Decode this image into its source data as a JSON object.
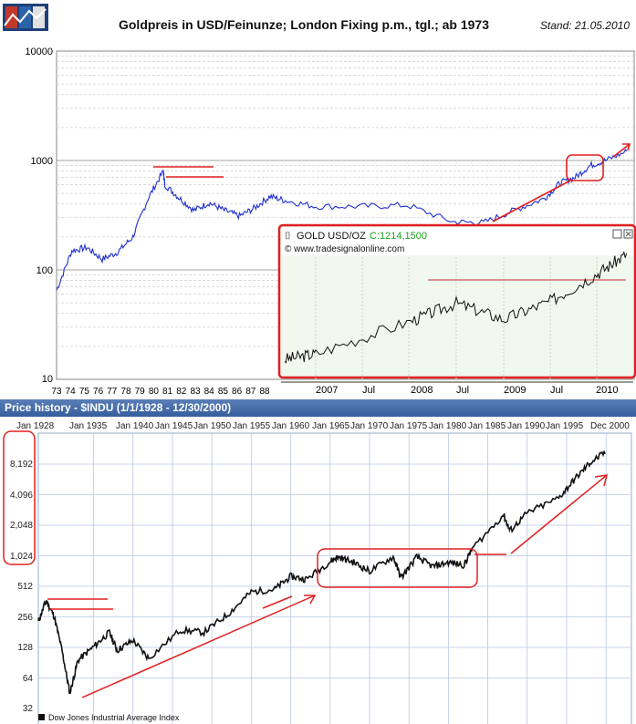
{
  "gold": {
    "title": "Goldpreis in USD/Feinunze; London Fixing p.m., tgl.; ab 1973",
    "date": "Stand: 21.05.2010",
    "y_ticks": [
      "10000",
      "1000",
      "100",
      "10"
    ],
    "x_ticks": [
      "73",
      "74",
      "75",
      "76",
      "77",
      "78",
      "79",
      "80",
      "81",
      "82",
      "83",
      "84",
      "85",
      "86",
      "87",
      "88"
    ]
  },
  "inset": {
    "title": "GOLD USD/OZ",
    "close": "C:1214,1500",
    "source": "© www.tradesignalonline.com",
    "x_ticks": [
      "2007",
      "Jul",
      "2008",
      "Jul",
      "2009",
      "Jul",
      "2010"
    ]
  },
  "indu": {
    "header": "Price history - $INDU (1/1/1928 - 12/30/2000)",
    "x_ticks": [
      "Jan 1928",
      "Jan 1935",
      "Jan 1940",
      "Jan 1945",
      "Jan 1950",
      "Jan 1955",
      "Jan 1960",
      "Jan 1965",
      "Jan 1970",
      "Jan 1975",
      "Jan 1980",
      "Jan 1985",
      "Jan 1990",
      "Jan 1995",
      "Dec 2000"
    ],
    "y_ticks": [
      "8,192",
      "4,096",
      "2,048",
      "1,024",
      "512",
      "256",
      "128",
      "64",
      "32"
    ],
    "legend": "Dow Jones Industrial Average Index"
  },
  "chart_data": [
    {
      "type": "line",
      "title": "Goldpreis in USD/Feinunze; London Fixing p.m., tgl.; ab 1973",
      "ylim": [
        10,
        10000
      ],
      "y_scale": "log",
      "x": [
        1973,
        1974,
        1975,
        1976,
        1977,
        1978,
        1979,
        1980,
        1980.1,
        1981,
        1982,
        1983,
        1984,
        1985,
        1986,
        1987,
        1988,
        1990,
        1993,
        1996,
        1999,
        2001,
        2003,
        2005,
        2006,
        2007,
        2008,
        2009,
        2010.4
      ],
      "series": [
        {
          "values": [
            65,
            150,
            160,
            125,
            145,
            200,
            450,
            800,
            600,
            460,
            350,
            410,
            350,
            310,
            370,
            470,
            430,
            380,
            380,
            390,
            275,
            270,
            350,
            450,
            620,
            700,
            900,
            1000,
            1214
          ]
        }
      ]
    },
    {
      "type": "line",
      "title": "GOLD USD/OZ",
      "x": [
        "2007",
        "Jul 2007",
        "2008",
        "Jul 2008",
        "2009",
        "Jul 2009",
        "2010",
        "May 2010"
      ],
      "series": [
        {
          "values": [
            630,
            660,
            840,
            940,
            850,
            950,
            1100,
            1214
          ]
        }
      ]
    },
    {
      "type": "line",
      "title": "Price history - $INDU (1/1/1928 - 12/30/2000)",
      "y_scale": "log",
      "ylim": [
        32,
        16384
      ],
      "x": [
        1928,
        1929,
        1930,
        1931,
        1932,
        1933,
        1935,
        1937,
        1938,
        1940,
        1942,
        1946,
        1949,
        1952,
        1955,
        1958,
        1960,
        1962,
        1965,
        1966,
        1968,
        1970,
        1973,
        1974,
        1976,
        1978,
        1980,
        1982,
        1983,
        1987,
        1987.8,
        1990,
        1994,
        1996,
        1998,
        2000
      ],
      "series": [
        {
          "name": "Dow Jones Industrial Average Index",
          "values": [
            230,
            370,
            260,
            120,
            45,
            95,
            130,
            180,
            120,
            150,
            100,
            190,
            180,
            270,
            450,
            480,
            640,
            600,
            900,
            1000,
            880,
            720,
            1000,
            620,
            1000,
            800,
            880,
            830,
            1200,
            2600,
            1800,
            2700,
            3800,
            5800,
            8500,
            10800
          ]
        }
      ]
    }
  ]
}
